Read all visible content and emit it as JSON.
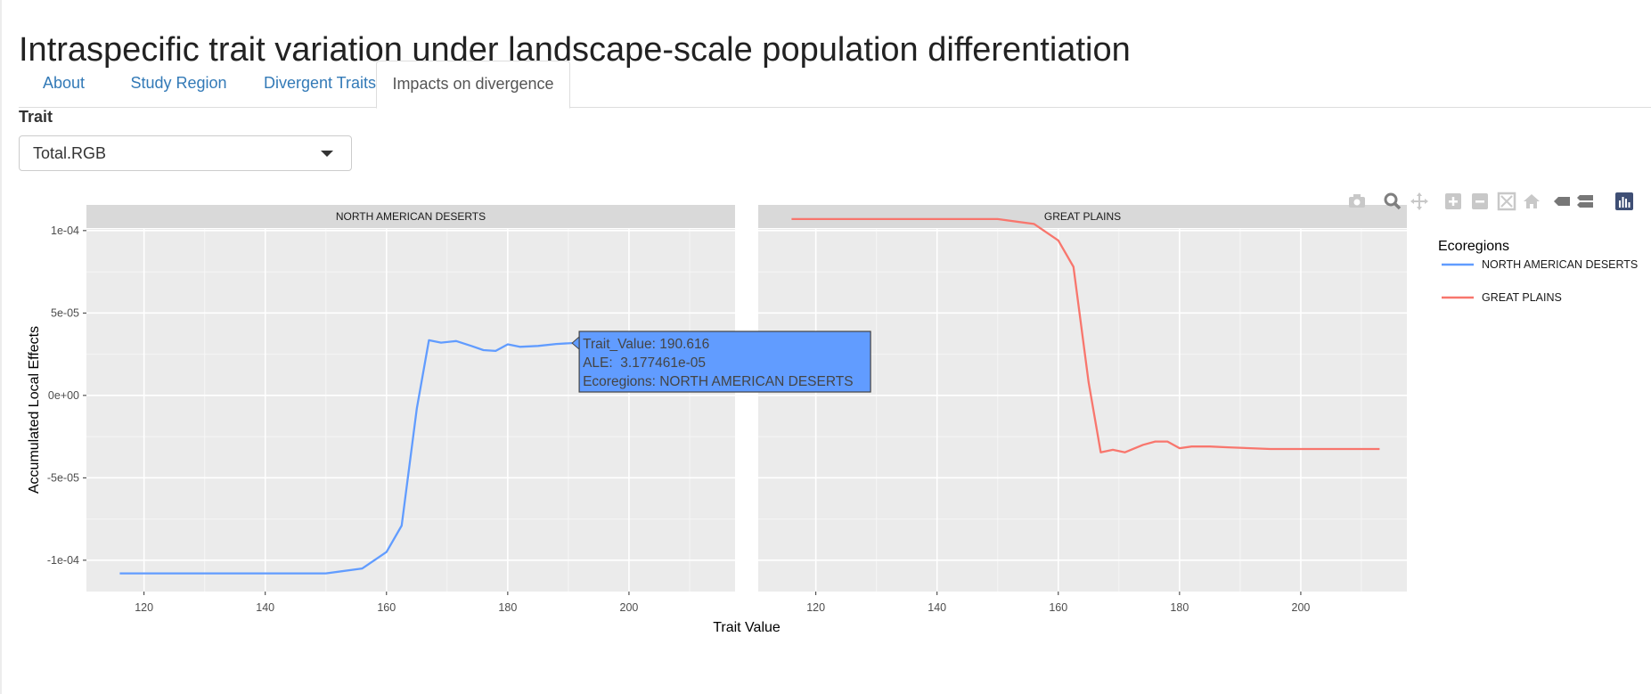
{
  "app": {
    "title": "Intraspecific trait variation under landscape-scale population differentiation",
    "tabs": [
      {
        "label": "About",
        "active": false
      },
      {
        "label": "Study Region",
        "active": false
      },
      {
        "label": "Divergent Traits",
        "active": false
      },
      {
        "label": "Impacts on divergence",
        "active": true
      }
    ]
  },
  "controls": {
    "trait_label": "Trait",
    "trait_selected": "Total.RGB"
  },
  "modebar": {
    "icons": [
      "camera-icon",
      "zoom-icon",
      "pan-icon",
      "zoom-in-icon",
      "zoom-out-icon",
      "autoscale-icon",
      "reset-axes-icon",
      "hover-closest-icon",
      "hover-compare-icon",
      "plotly-logo-icon"
    ]
  },
  "colors": {
    "deserts": "#619CFF",
    "plains": "#F8766D",
    "panel_bg": "#EBEBEB",
    "strip_bg": "#D9D9D9"
  },
  "chart_data": {
    "type": "line",
    "xlabel": "Trait Value",
    "ylabel": "Accumulated Local Effects",
    "xlim": [
      110.5,
      217.5
    ],
    "ylim": [
      -0.000119,
      0.000101
    ],
    "x_ticks": [
      120,
      140,
      160,
      180,
      200
    ],
    "y_ticks": [
      {
        "value": 0.0001,
        "label": "1e-04"
      },
      {
        "value": 5e-05,
        "label": "5e-05"
      },
      {
        "value": 0,
        "label": "0e+00"
      },
      {
        "value": -5e-05,
        "label": "-5e-05"
      },
      {
        "value": -0.0001,
        "label": "-1e-04"
      }
    ],
    "legend": {
      "title": "Ecoregions",
      "position": "right"
    },
    "facets": [
      {
        "title": "NORTH AMERICAN DESERTS",
        "series": {
          "name": "NORTH AMERICAN DESERTS",
          "color": "#619CFF",
          "points": [
            [
              116,
              -0.000108
            ],
            [
              120,
              -0.000108
            ],
            [
              130,
              -0.000108
            ],
            [
              140,
              -0.000108
            ],
            [
              150,
              -0.000108
            ],
            [
              156,
              -0.000105
            ],
            [
              160,
              -9.5e-05
            ],
            [
              162.5,
              -7.9e-05
            ],
            [
              165,
              -8e-06
            ],
            [
              167,
              3.35e-05
            ],
            [
              169,
              3.2e-05
            ],
            [
              171.5,
              3.3e-05
            ],
            [
              174,
              3e-05
            ],
            [
              176,
              2.75e-05
            ],
            [
              178,
              2.7e-05
            ],
            [
              180,
              3.1e-05
            ],
            [
              182,
              2.95e-05
            ],
            [
              185,
              3e-05
            ],
            [
              188,
              3.12e-05
            ],
            [
              190.616,
              3.177e-05
            ]
          ]
        }
      },
      {
        "title": "GREAT PLAINS",
        "series": {
          "name": "GREAT PLAINS",
          "color": "#F8766D",
          "points": [
            [
              116,
              0.000107
            ],
            [
              120,
              0.000107
            ],
            [
              130,
              0.000107
            ],
            [
              140,
              0.000107
            ],
            [
              150,
              0.000107
            ],
            [
              156,
              0.000104
            ],
            [
              160,
              9.4e-05
            ],
            [
              162.5,
              7.8e-05
            ],
            [
              165,
              8e-06
            ],
            [
              167,
              -3.45e-05
            ],
            [
              169,
              -3.3e-05
            ],
            [
              171,
              -3.45e-05
            ],
            [
              174,
              -3e-05
            ],
            [
              176,
              -2.8e-05
            ],
            [
              178,
              -2.8e-05
            ],
            [
              180,
              -3.2e-05
            ],
            [
              182,
              -3.1e-05
            ],
            [
              185,
              -3.1e-05
            ],
            [
              188,
              -3.15e-05
            ],
            [
              195,
              -3.25e-05
            ],
            [
              200,
              -3.25e-05
            ],
            [
              213,
              -3.25e-05
            ]
          ]
        }
      }
    ],
    "hover": {
      "lines": [
        "Trait_Value: 190.616",
        "ALE:  3.177461e-05",
        "Ecoregions: NORTH AMERICAN DESERTS"
      ],
      "facet": 0,
      "x": 190.616,
      "y": 3.177e-05
    }
  }
}
